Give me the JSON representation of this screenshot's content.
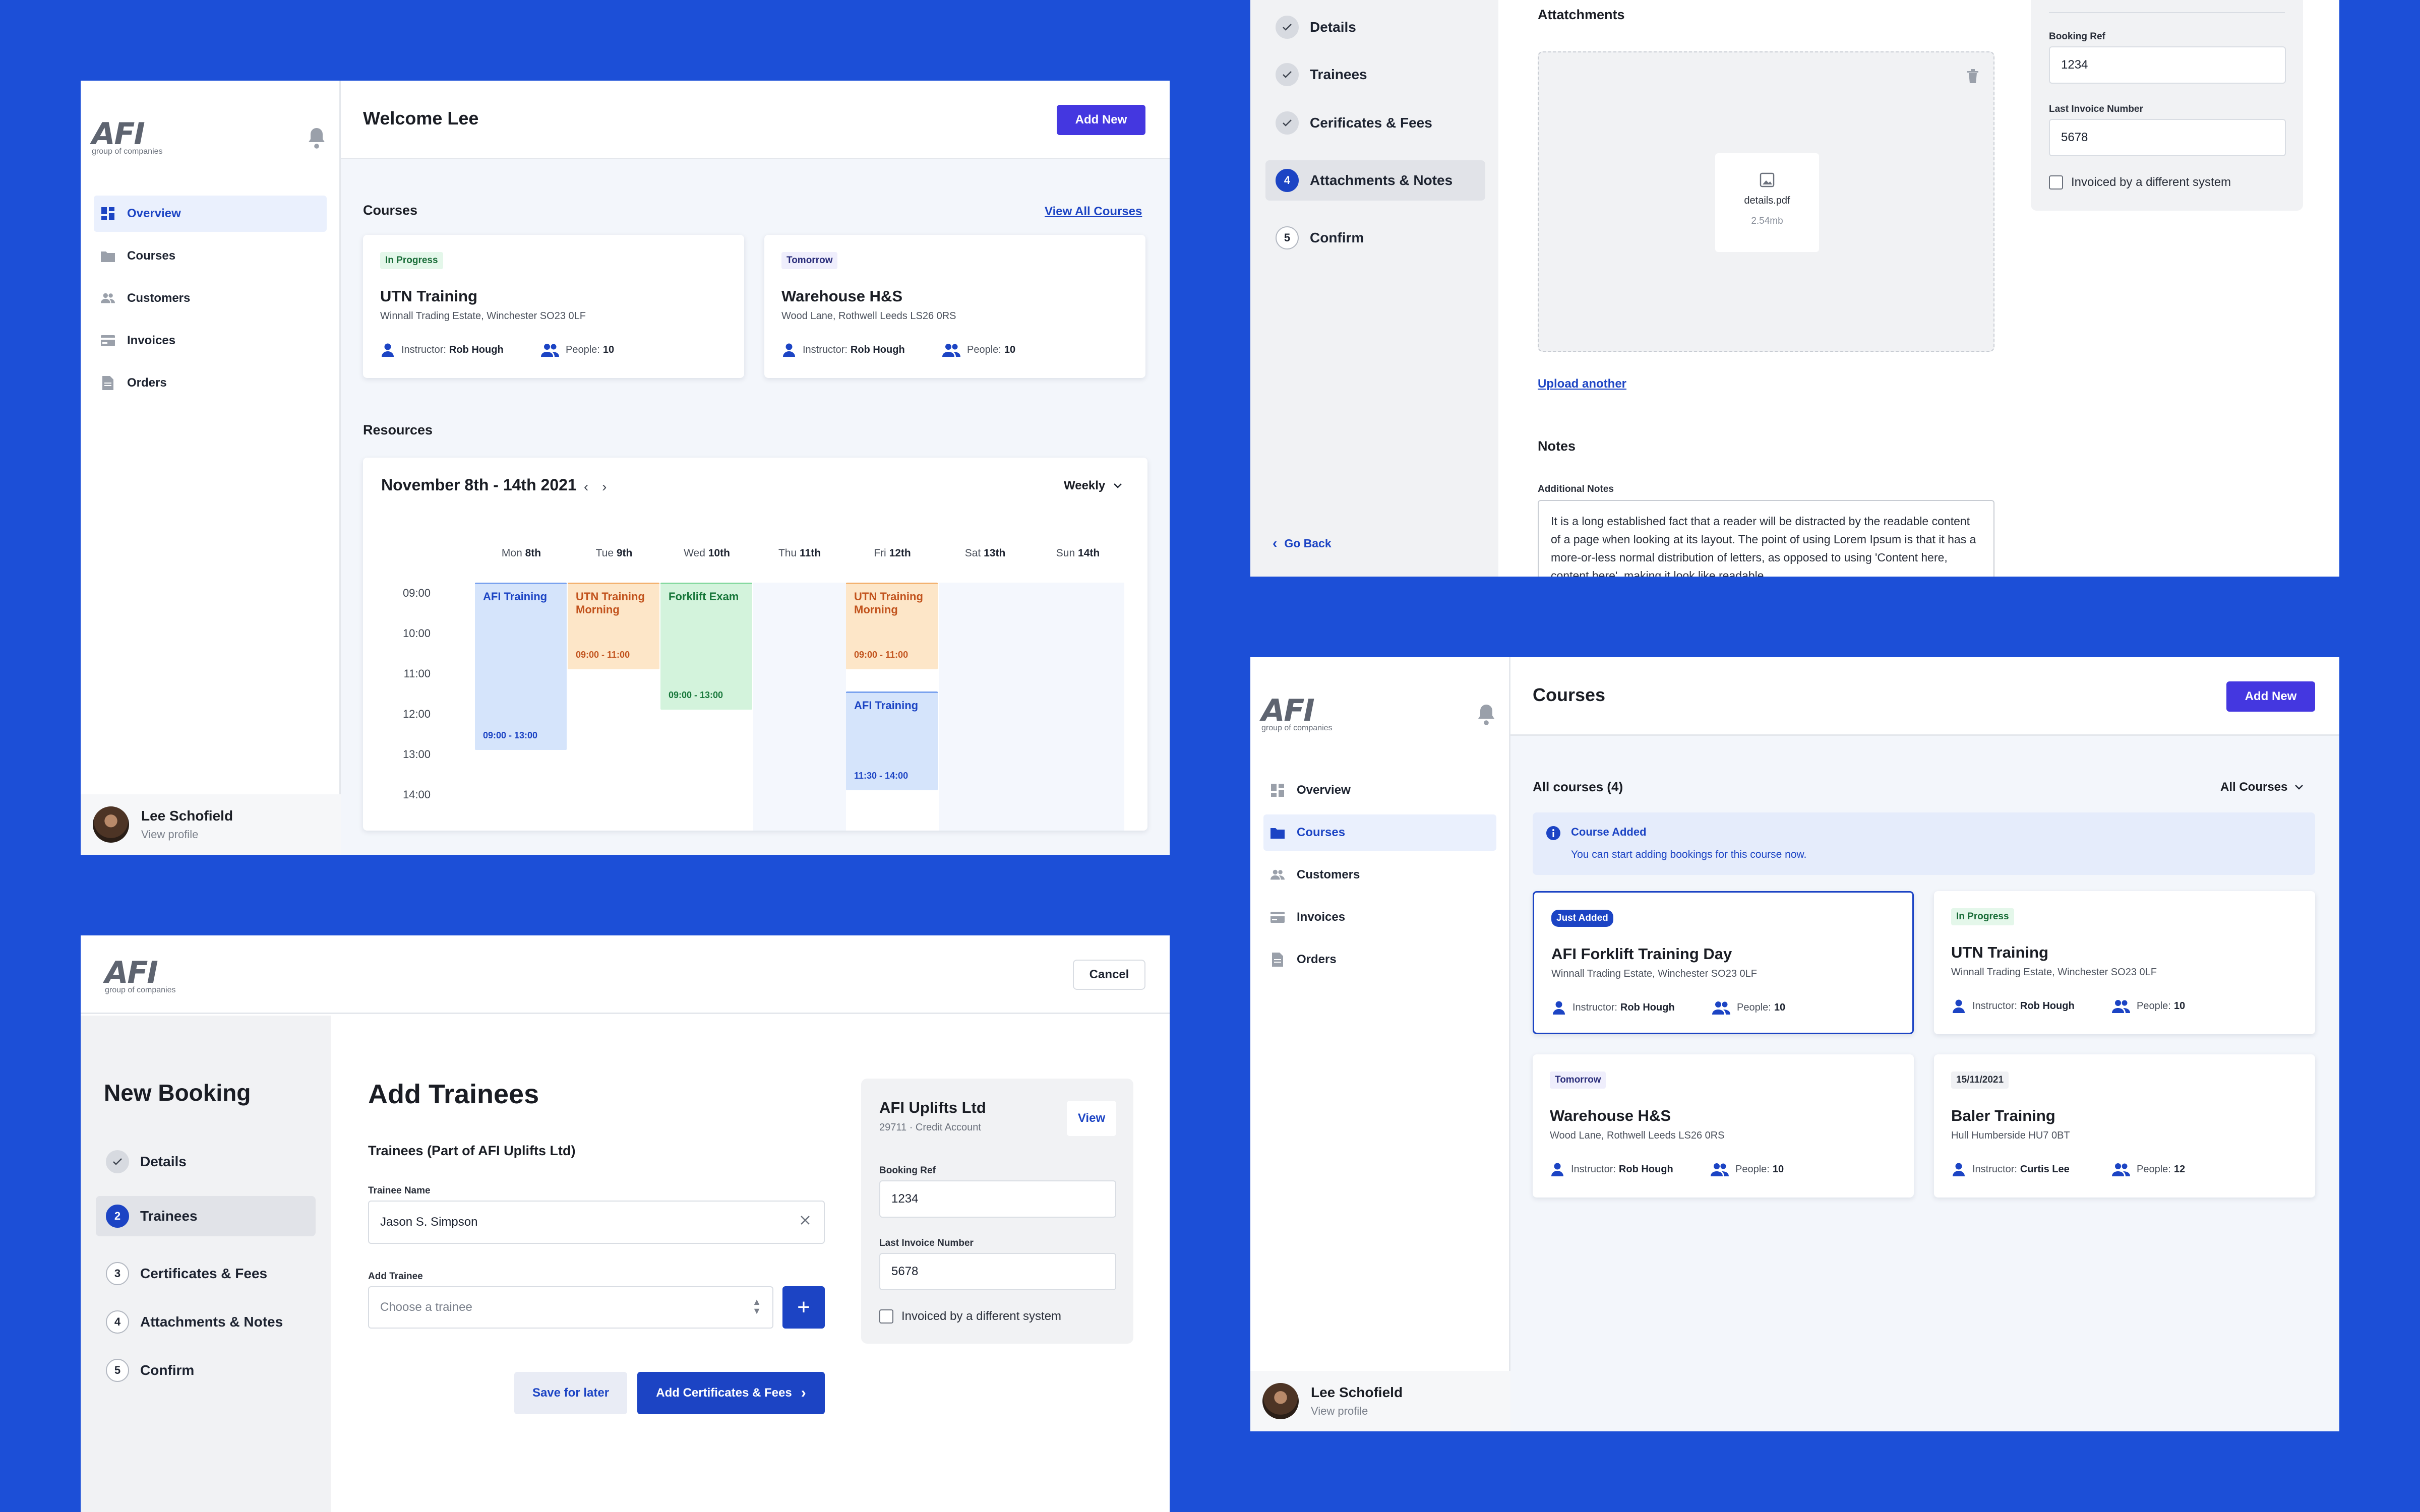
{
  "brand": {
    "logo": "AFI",
    "logo_sub": "group of companies"
  },
  "nav": [
    "Overview",
    "Courses",
    "Customers",
    "Invoices",
    "Orders"
  ],
  "user": {
    "name": "Lee Schofield",
    "sub": "View profile"
  },
  "dashboard": {
    "title": "Welcome Lee",
    "add_new": "Add New",
    "courses_title": "Courses",
    "view_all": "View All Courses",
    "courses": [
      {
        "badge": "In Progress",
        "title": "UTN Training",
        "address": "Winnall Trading Estate, Winchester SO23 0LF",
        "instructor_label": "Instructor:",
        "instructor": "Rob Hough",
        "people_label": "People:",
        "people": "10"
      },
      {
        "badge": "Tomorrow",
        "title": "Warehouse H&S",
        "address": "Wood Lane, Rothwell Leeds LS26 0RS",
        "instructor_label": "Instructor:",
        "instructor": "Rob Hough",
        "people_label": "People:",
        "people": "10"
      }
    ],
    "resources_title": "Resources",
    "calendar": {
      "range": "November 8th - 14th 2021",
      "view": "Weekly",
      "days": [
        {
          "name": "Mon",
          "num": "8th"
        },
        {
          "name": "Tue",
          "num": "9th"
        },
        {
          "name": "Wed",
          "num": "10th"
        },
        {
          "name": "Thu",
          "num": "11th"
        },
        {
          "name": "Fri",
          "num": "12th"
        },
        {
          "name": "Sat",
          "num": "13th"
        },
        {
          "name": "Sun",
          "num": "14th"
        }
      ],
      "hours": [
        "09:00",
        "10:00",
        "11:00",
        "12:00",
        "13:00",
        "14:00"
      ],
      "events": [
        {
          "title": "AFI Training",
          "time": "09:00 - 13:00"
        },
        {
          "title": "UTN Training Morning",
          "time": "09:00 - 11:00"
        },
        {
          "title": "Forklift Exam",
          "time": "09:00 - 13:00"
        },
        {
          "title": "UTN Training Morning",
          "time": "09:00 - 11:00"
        },
        {
          "title": "AFI Training",
          "time": "11:30 - 14:00"
        }
      ]
    }
  },
  "attachments_screen": {
    "steps": [
      {
        "num": "",
        "label": "Details"
      },
      {
        "num": "",
        "label": "Trainees"
      },
      {
        "num": "",
        "label": "Cerificates & Fees"
      },
      {
        "num": "4",
        "label": "Attachments & Notes"
      },
      {
        "num": "5",
        "label": "Confirm"
      }
    ],
    "go_back": "Go Back",
    "attachments_title": "Attatchments",
    "file_name": "details.pdf",
    "file_size": "2.54mb",
    "upload_another": "Upload another",
    "notes_title": "Notes",
    "notes_label": "Additional Notes",
    "notes_text": "It is a long established fact that a reader will be distracted by the readable content of a page when looking at its layout. The point of using Lorem Ipsum is that it has a more-or-less normal distribution of letters, as opposed to using 'Content here, content here', making it look like readable",
    "booking_ref_label": "Booking Ref",
    "booking_ref": "1234",
    "last_invoice_label": "Last Invoice Number",
    "last_invoice": "5678",
    "invoiced_label": "Invoiced by a different system"
  },
  "booking_screen": {
    "cancel": "Cancel",
    "heading": "New Booking",
    "steps": [
      {
        "num": "",
        "label": "Details"
      },
      {
        "num": "2",
        "label": "Trainees"
      },
      {
        "num": "3",
        "label": "Certificates & Fees"
      },
      {
        "num": "4",
        "label": "Attachments & Notes"
      },
      {
        "num": "5",
        "label": "Confirm"
      }
    ],
    "title": "Add Trainees",
    "subtitle": "Trainees (Part of AFI Uplifts Ltd)",
    "trainee_name_label": "Trainee Name",
    "trainee_name": "Jason S. Simpson",
    "add_trainee_label": "Add Trainee",
    "add_trainee_placeholder": "Choose a trainee",
    "save_later": "Save for later",
    "next": "Add Certificates & Fees",
    "company": {
      "name": "AFI Uplifts Ltd",
      "sub": "29711 · Credit Account",
      "view": "View"
    },
    "booking_ref_label": "Booking Ref",
    "booking_ref": "1234",
    "last_invoice_label": "Last Invoice Number",
    "last_invoice": "5678",
    "invoiced_label": "Invoiced by a different system"
  },
  "courses_screen": {
    "title": "Courses",
    "add_new": "Add New",
    "count_label": "All courses (4)",
    "filter": "All Courses",
    "alert_title": "Course Added",
    "alert_text": "You can start adding bookings for this course now.",
    "courses": [
      {
        "badge": "Just Added",
        "title": "AFI Forklift Training Day",
        "address": "Winnall Trading Estate, Winchester SO23 0LF",
        "instructor_label": "Instructor:",
        "instructor": "Rob Hough",
        "people_label": "People:",
        "people": "10"
      },
      {
        "badge": "In Progress",
        "title": "UTN Training",
        "address": "Winnall Trading Estate, Winchester SO23 0LF",
        "instructor_label": "Instructor:",
        "instructor": "Rob Hough",
        "people_label": "People:",
        "people": "10"
      },
      {
        "badge": "Tomorrow",
        "title": "Warehouse H&S",
        "address": "Wood Lane, Rothwell Leeds LS26 0RS",
        "instructor_label": "Instructor:",
        "instructor": "Rob Hough",
        "people_label": "People:",
        "people": "10"
      },
      {
        "badge": "15/11/2021",
        "title": "Baler Training",
        "address": "Hull Humberside HU7 0BT",
        "instructor_label": "Instructor:",
        "instructor": "Curtis Lee",
        "people_label": "People:",
        "people": "12"
      }
    ]
  },
  "colors": {
    "background": "#1c4fd7",
    "primary": "#1c44c4",
    "accent": "#4437e0"
  }
}
